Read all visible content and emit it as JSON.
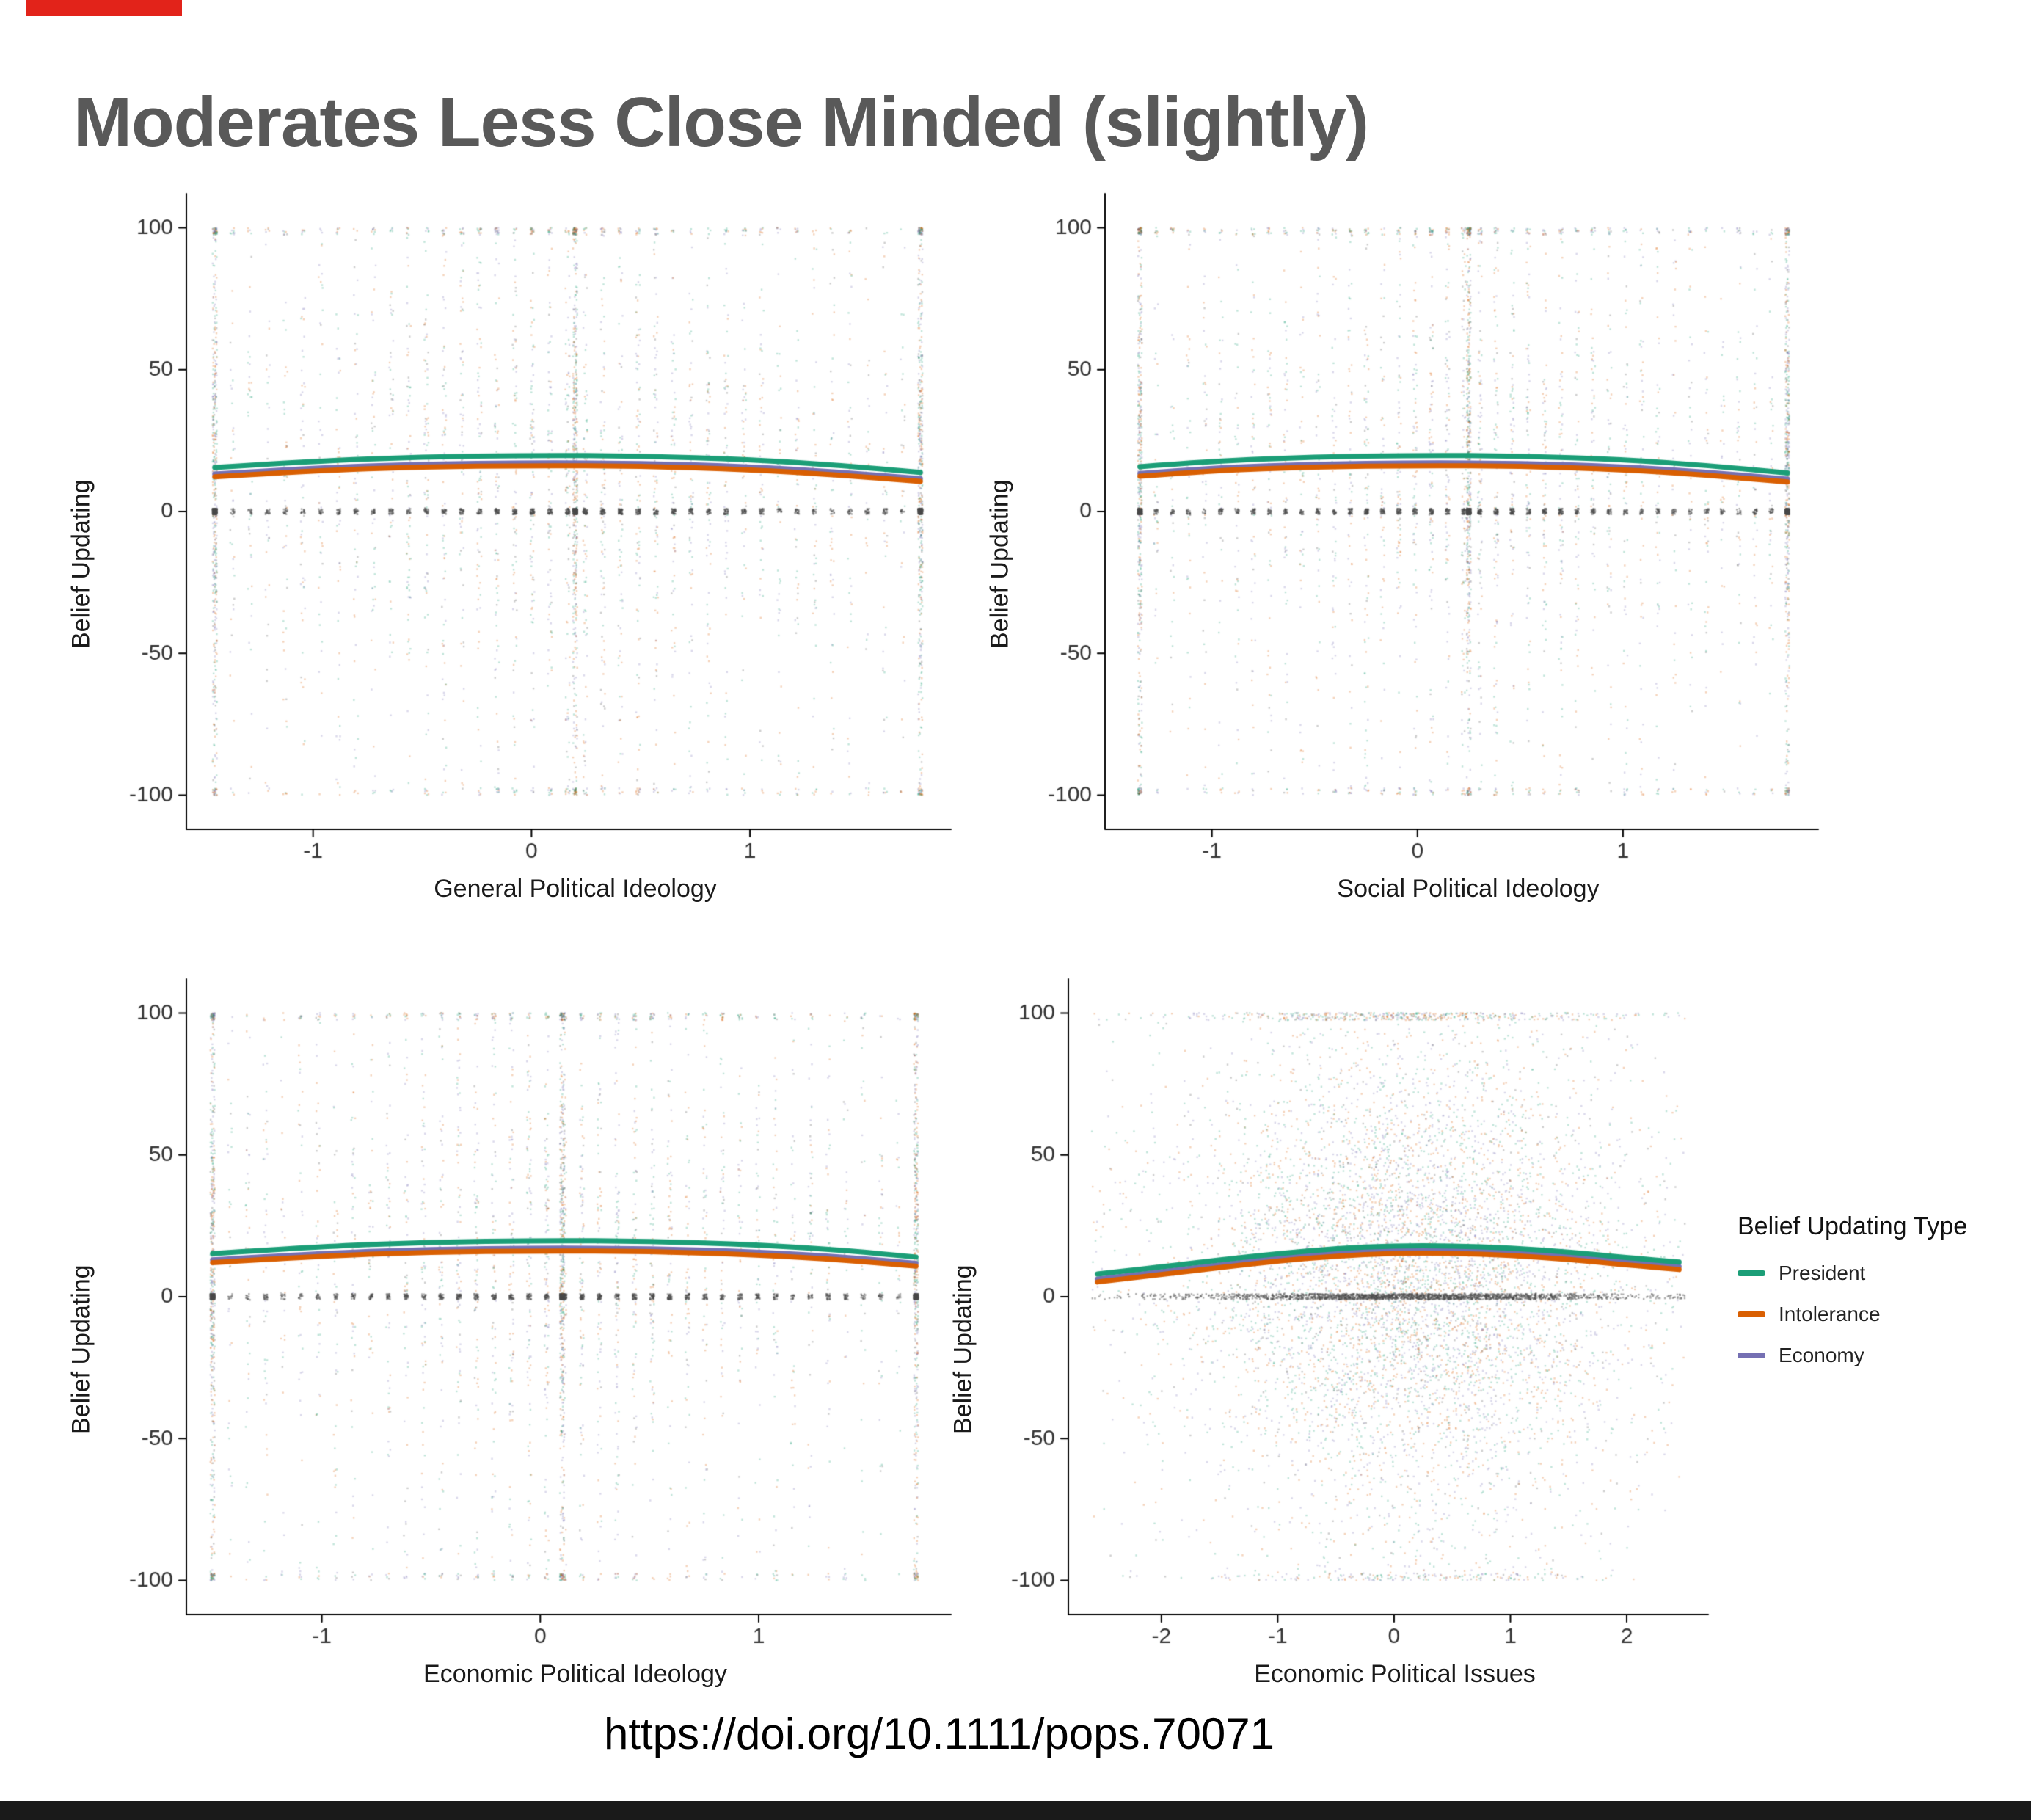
{
  "slide": {
    "title": "Moderates Less Close Minded (slightly)",
    "title_color": "#595959",
    "accent_color": "#e2231a"
  },
  "footer": {
    "doi": "https://doi.org/10.1111/pops.70071"
  },
  "legend": {
    "title": "Belief Updating Type",
    "position": "right",
    "items": [
      {
        "label": "President",
        "color": "#1B9E77"
      },
      {
        "label": "Intolerance",
        "color": "#D95F02"
      },
      {
        "label": "Economy",
        "color": "#7570B3"
      }
    ]
  },
  "chart_data": [
    {
      "type": "scatter",
      "xlabel": "General Political Ideology",
      "ylabel": "Belief Updating",
      "xlim": [
        -1.58,
        1.92
      ],
      "ylim": [
        -112,
        112
      ],
      "xticks": [
        -1,
        0,
        1
      ],
      "yticks": [
        -100,
        -50,
        0,
        50,
        100
      ],
      "grid": false,
      "scatter": {
        "style": "columns",
        "n": 6000,
        "seed": 11,
        "x_range": [
          -1.45,
          1.78
        ],
        "dense_columns": [
          -1.45,
          0.2,
          1.78
        ],
        "zero_line_y": 0,
        "edge_y": [
          100,
          -100
        ],
        "point_colors": [
          "#1B9E77",
          "#D95F02",
          "#7570B3",
          "#4a4a4a"
        ]
      },
      "series": [
        {
          "name": "Economy",
          "color": "#7570B3",
          "x": [
            -1.45,
            -1.0,
            -0.5,
            0.0,
            0.5,
            1.0,
            1.4,
            1.78
          ],
          "y": [
            13.2,
            15.4,
            16.7,
            17.2,
            17.0,
            15.8,
            13.9,
            11.6
          ]
        },
        {
          "name": "Intolerance",
          "color": "#D95F02",
          "x": [
            -1.45,
            -1.0,
            -0.5,
            0.0,
            0.5,
            1.0,
            1.4,
            1.78
          ],
          "y": [
            12.2,
            14.4,
            15.7,
            16.2,
            16.0,
            14.8,
            12.9,
            10.6
          ]
        },
        {
          "name": "President",
          "color": "#1B9E77",
          "x": [
            -1.45,
            -1.0,
            -0.5,
            0.0,
            0.5,
            1.0,
            1.4,
            1.78
          ],
          "y": [
            15.5,
            17.8,
            19.2,
            19.8,
            19.6,
            18.3,
            16.3,
            13.8
          ]
        }
      ]
    },
    {
      "type": "scatter",
      "xlabel": "Social Political Ideology",
      "ylabel": "Belief Updating",
      "xlim": [
        -1.52,
        1.95
      ],
      "ylim": [
        -112,
        112
      ],
      "xticks": [
        -1,
        0,
        1
      ],
      "yticks": [
        -100,
        -50,
        0,
        50,
        100
      ],
      "grid": false,
      "scatter": {
        "style": "columns",
        "n": 6000,
        "seed": 22,
        "x_range": [
          -1.35,
          1.8
        ],
        "dense_columns": [
          -1.35,
          0.25,
          1.8
        ],
        "zero_line_y": 0,
        "edge_y": [
          100,
          -100
        ],
        "point_colors": [
          "#1B9E77",
          "#D95F02",
          "#7570B3",
          "#4a4a4a"
        ]
      },
      "series": [
        {
          "name": "Economy",
          "color": "#7570B3",
          "x": [
            -1.35,
            -1.0,
            -0.5,
            0.0,
            0.5,
            1.0,
            1.4,
            1.8
          ],
          "y": [
            13.4,
            15.4,
            16.7,
            17.2,
            17.0,
            15.8,
            13.9,
            11.4
          ]
        },
        {
          "name": "Intolerance",
          "color": "#D95F02",
          "x": [
            -1.35,
            -1.0,
            -0.5,
            0.0,
            0.5,
            1.0,
            1.4,
            1.8
          ],
          "y": [
            12.4,
            14.4,
            15.7,
            16.2,
            16.0,
            14.8,
            12.9,
            10.4
          ]
        },
        {
          "name": "President",
          "color": "#1B9E77",
          "x": [
            -1.35,
            -1.0,
            -0.5,
            0.0,
            0.5,
            1.0,
            1.4,
            1.8
          ],
          "y": [
            15.8,
            17.8,
            19.2,
            19.8,
            19.6,
            18.3,
            16.3,
            13.6
          ]
        }
      ]
    },
    {
      "type": "scatter",
      "xlabel": "Economic Political Ideology",
      "ylabel": "Belief Updating",
      "xlim": [
        -1.62,
        1.88
      ],
      "ylim": [
        -112,
        112
      ],
      "xticks": [
        -1,
        0,
        1
      ],
      "yticks": [
        -100,
        -50,
        0,
        50,
        100
      ],
      "grid": false,
      "scatter": {
        "style": "columns",
        "n": 6000,
        "seed": 33,
        "x_range": [
          -1.5,
          1.72
        ],
        "dense_columns": [
          -1.5,
          0.1,
          1.72
        ],
        "zero_line_y": 0,
        "edge_y": [
          100,
          -100
        ],
        "point_colors": [
          "#1B9E77",
          "#D95F02",
          "#7570B3",
          "#4a4a4a"
        ]
      },
      "series": [
        {
          "name": "Economy",
          "color": "#7570B3",
          "x": [
            -1.5,
            -1.0,
            -0.5,
            0.0,
            0.5,
            1.0,
            1.4,
            1.72
          ],
          "y": [
            13.0,
            15.4,
            16.7,
            17.2,
            17.0,
            15.8,
            13.9,
            11.8
          ]
        },
        {
          "name": "Intolerance",
          "color": "#D95F02",
          "x": [
            -1.5,
            -1.0,
            -0.5,
            0.0,
            0.5,
            1.0,
            1.4,
            1.72
          ],
          "y": [
            12.0,
            14.4,
            15.7,
            16.2,
            16.0,
            14.8,
            12.9,
            10.8
          ]
        },
        {
          "name": "President",
          "color": "#1B9E77",
          "x": [
            -1.5,
            -1.0,
            -0.5,
            0.0,
            0.5,
            1.0,
            1.4,
            1.72
          ],
          "y": [
            15.2,
            17.8,
            19.2,
            19.8,
            19.6,
            18.3,
            16.3,
            14.0
          ]
        }
      ]
    },
    {
      "type": "scatter",
      "xlabel": "Economic Political Issues",
      "ylabel": "Belief Updating",
      "xlim": [
        -2.8,
        2.7
      ],
      "ylim": [
        -112,
        112
      ],
      "xticks": [
        -2,
        -1,
        0,
        1,
        2
      ],
      "yticks": [
        -100,
        -50,
        0,
        50,
        100
      ],
      "grid": false,
      "scatter": {
        "style": "cloud",
        "n": 9000,
        "seed": 44,
        "x_range": [
          -2.6,
          2.5
        ],
        "x_center": 0.15,
        "x_sd": 0.9,
        "zero_line_y": 0,
        "edge_y": [
          100,
          -100
        ],
        "point_colors": [
          "#1B9E77",
          "#D95F02",
          "#7570B3",
          "#4a4a4a"
        ]
      },
      "series": [
        {
          "name": "Economy",
          "color": "#7570B3",
          "x": [
            -2.55,
            -2.0,
            -1.5,
            -1.0,
            -0.5,
            0.0,
            0.5,
            1.0,
            1.5,
            2.0,
            2.45
          ],
          "y": [
            6.2,
            8.8,
            11.3,
            13.6,
            15.4,
            16.4,
            16.4,
            15.6,
            14.2,
            12.2,
            10.6
          ]
        },
        {
          "name": "Intolerance",
          "color": "#D95F02",
          "x": [
            -2.55,
            -2.0,
            -1.5,
            -1.0,
            -0.5,
            0.0,
            0.5,
            1.0,
            1.5,
            2.0,
            2.45
          ],
          "y": [
            5.2,
            7.8,
            10.3,
            12.6,
            14.4,
            15.4,
            15.4,
            14.6,
            13.2,
            11.2,
            9.6
          ]
        },
        {
          "name": "President",
          "color": "#1B9E77",
          "x": [
            -2.55,
            -2.0,
            -1.5,
            -1.0,
            -0.5,
            0.0,
            0.5,
            1.0,
            1.5,
            2.0,
            2.45
          ],
          "y": [
            8.0,
            10.5,
            13.0,
            15.2,
            17.0,
            18.0,
            18.0,
            17.2,
            15.8,
            13.8,
            12.2
          ]
        }
      ]
    }
  ]
}
